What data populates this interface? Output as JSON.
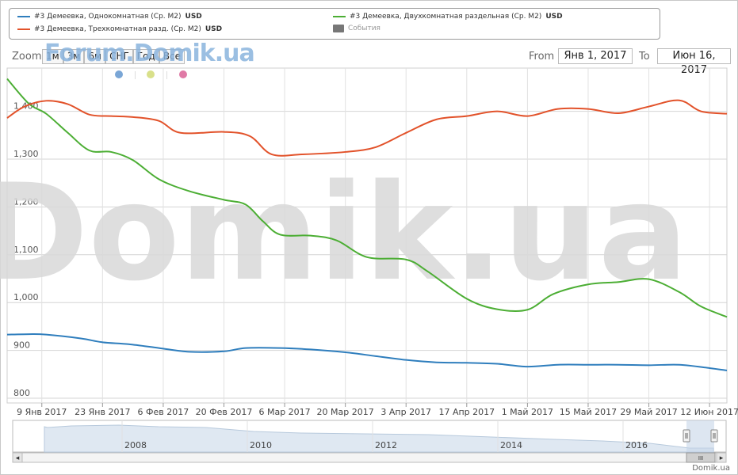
{
  "legend": {
    "items": [
      {
        "label": "#3 Демеевка, Однокомнатная (Ср. М2)",
        "currency": "USD",
        "color": "#2f7ebd"
      },
      {
        "label": "#3 Демеевка, Двухкомнатная раздельная (Ср. М2)",
        "currency": "USD",
        "color": "#4cae34"
      },
      {
        "label": "#3 Демеевка, Трехкомнатная разд. (Ср. М2)",
        "currency": "USD",
        "color": "#e2522a"
      },
      {
        "label": "События",
        "color": "#777777"
      }
    ]
  },
  "zoom": {
    "label": "Zoom",
    "buttons": [
      "1м",
      "3м",
      "6м",
      "СНГ",
      "Год",
      "Все"
    ]
  },
  "range": {
    "from_label": "From",
    "from_value": "Янв 1, 2017",
    "to_label": "To",
    "to_value": "Июн 16, 2017"
  },
  "watermarks": {
    "top": "Forum.Domik.ua",
    "center": "Domik.ua"
  },
  "event_dots": [
    "#7aa6d6",
    "#d9e08a",
    "#e07aa6"
  ],
  "credit": "Domik.ua",
  "navigator": {
    "years": [
      "2008",
      "2010",
      "2012",
      "2014",
      "2016"
    ],
    "scroll_left": "◂",
    "scroll_right": "▸",
    "grip": "III"
  },
  "chart_data": {
    "type": "line",
    "x_ticks": [
      "9 Янв 2017",
      "23 Янв 2017",
      "6 Фев 2017",
      "20 Фев 2017",
      "6 Мар 2017",
      "20 Мар 2017",
      "3 Апр 2017",
      "17 Апр 2017",
      "1 Май 2017",
      "15 Май 2017",
      "29 Май 2017",
      "12 Июн 2017"
    ],
    "y_ticks": [
      "800",
      "900",
      "1,000",
      "1,100",
      "1,200",
      "1,300",
      "1,400"
    ],
    "ylim": [
      800,
      1400
    ],
    "xlim": [
      "2017-01-01",
      "2017-06-16"
    ],
    "series": [
      {
        "name": "#3 Демеевка, Однокомнатная (Ср. М2)",
        "color": "#2f7ebd",
        "x": [
          "2017-01-01",
          "2017-01-06",
          "2017-01-10",
          "2017-01-18",
          "2017-01-23",
          "2017-01-29",
          "2017-02-05",
          "2017-02-12",
          "2017-02-20",
          "2017-02-25",
          "2017-03-05",
          "2017-03-12",
          "2017-03-20",
          "2017-03-27",
          "2017-04-03",
          "2017-04-10",
          "2017-04-17",
          "2017-04-24",
          "2017-05-01",
          "2017-05-08",
          "2017-05-15",
          "2017-05-22",
          "2017-05-29",
          "2017-06-05",
          "2017-06-12",
          "2017-06-16"
        ],
        "values": [
          933,
          934,
          933,
          925,
          917,
          913,
          905,
          897,
          898,
          905,
          905,
          902,
          896,
          888,
          880,
          875,
          874,
          872,
          866,
          870,
          870,
          870,
          869,
          870,
          863,
          858
        ]
      },
      {
        "name": "#3 Демеевка, Двухкомнатная раздельная (Ср. М2)",
        "color": "#4cae34",
        "x": [
          "2017-01-01",
          "2017-01-06",
          "2017-01-10",
          "2017-01-15",
          "2017-01-20",
          "2017-01-25",
          "2017-01-30",
          "2017-02-05",
          "2017-02-12",
          "2017-02-20",
          "2017-02-25",
          "2017-03-01",
          "2017-03-05",
          "2017-03-12",
          "2017-03-18",
          "2017-03-25",
          "2017-04-03",
          "2017-04-08",
          "2017-04-17",
          "2017-04-24",
          "2017-05-01",
          "2017-05-07",
          "2017-05-15",
          "2017-05-22",
          "2017-05-29",
          "2017-06-05",
          "2017-06-10",
          "2017-06-16"
        ],
        "values": [
          1468,
          1416,
          1395,
          1355,
          1318,
          1315,
          1298,
          1258,
          1233,
          1215,
          1205,
          1170,
          1142,
          1140,
          1130,
          1095,
          1090,
          1065,
          1008,
          986,
          985,
          1018,
          1038,
          1043,
          1049,
          1022,
          992,
          970
        ]
      },
      {
        "name": "#3 Демеевка, Трехкомнатная разд. (Ср. М2)",
        "color": "#e2522a",
        "x": [
          "2017-01-01",
          "2017-01-05",
          "2017-01-10",
          "2017-01-15",
          "2017-01-20",
          "2017-01-25",
          "2017-01-30",
          "2017-02-05",
          "2017-02-10",
          "2017-02-20",
          "2017-02-26",
          "2017-03-03",
          "2017-03-10",
          "2017-03-20",
          "2017-03-27",
          "2017-04-03",
          "2017-04-10",
          "2017-04-17",
          "2017-04-24",
          "2017-05-01",
          "2017-05-08",
          "2017-05-15",
          "2017-05-22",
          "2017-05-29",
          "2017-06-05",
          "2017-06-10",
          "2017-06-16"
        ],
        "values": [
          1386,
          1410,
          1422,
          1415,
          1393,
          1390,
          1388,
          1380,
          1355,
          1357,
          1348,
          1310,
          1310,
          1315,
          1325,
          1355,
          1383,
          1390,
          1400,
          1390,
          1405,
          1405,
          1396,
          1410,
          1423,
          1400,
          1395
        ]
      }
    ]
  }
}
